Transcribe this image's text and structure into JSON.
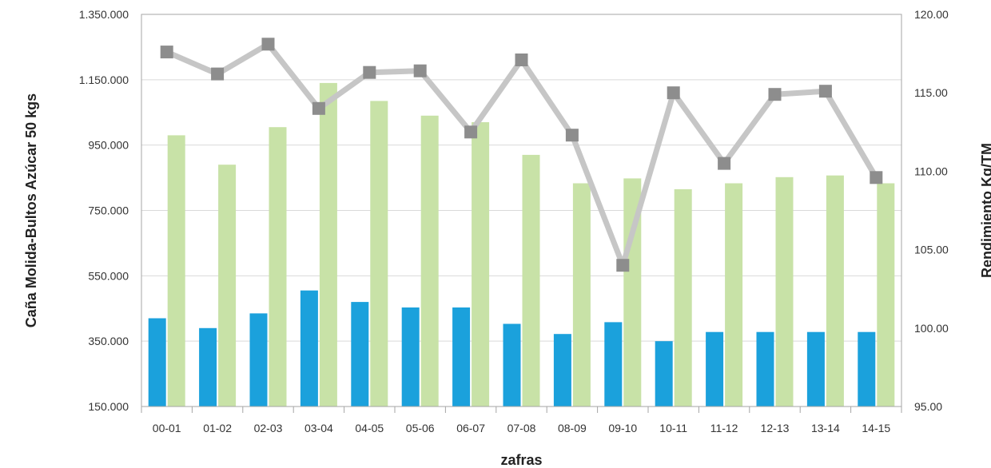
{
  "chart_data": {
    "type": "bar",
    "categories": [
      "00-01",
      "01-02",
      "02-03",
      "03-04",
      "04-05",
      "05-06",
      "06-07",
      "07-08",
      "08-09",
      "09-10",
      "10-11",
      "11-12",
      "12-13",
      "13-14",
      "14-15"
    ],
    "series": [
      {
        "values": [
          420000,
          390000,
          435000,
          505000,
          470000,
          453000,
          453000,
          403000,
          372000,
          408000,
          350000,
          378000,
          378000,
          378000,
          378000
        ],
        "color": "#1ba1dc",
        "axis": "left",
        "type": "bar"
      },
      {
        "values": [
          980000,
          890000,
          1005000,
          1140000,
          1085000,
          1040000,
          1020000,
          920000,
          833000,
          848000,
          815000,
          833000,
          852000,
          857000,
          833000
        ],
        "color": "#c8e2a7",
        "axis": "left",
        "type": "bar"
      },
      {
        "values": [
          117.6,
          116.2,
          118.1,
          114.0,
          116.3,
          116.4,
          112.5,
          117.1,
          112.3,
          104.0,
          115.0,
          110.5,
          114.9,
          115.1,
          109.6
        ],
        "color": "#c6c6c6",
        "marker_color": "#8d8d8d",
        "axis": "right",
        "type": "line"
      }
    ],
    "xlabel": "zafras",
    "ylabel": "Caña Molida-Bultos Azúcar 50 kgs",
    "y2label": "Rendimiento Kg/TM",
    "ylim": [
      150000,
      1350000
    ],
    "y2lim": [
      95,
      120
    ],
    "yticks": [
      "150.000",
      "350.000",
      "550.000",
      "750.000",
      "950.000",
      "1.150.000",
      "1.350.000"
    ],
    "y2ticks": [
      "95.00",
      "100.00",
      "105.00",
      "110.00",
      "115.00",
      "120.00"
    ],
    "grid": true,
    "legend": "none"
  }
}
